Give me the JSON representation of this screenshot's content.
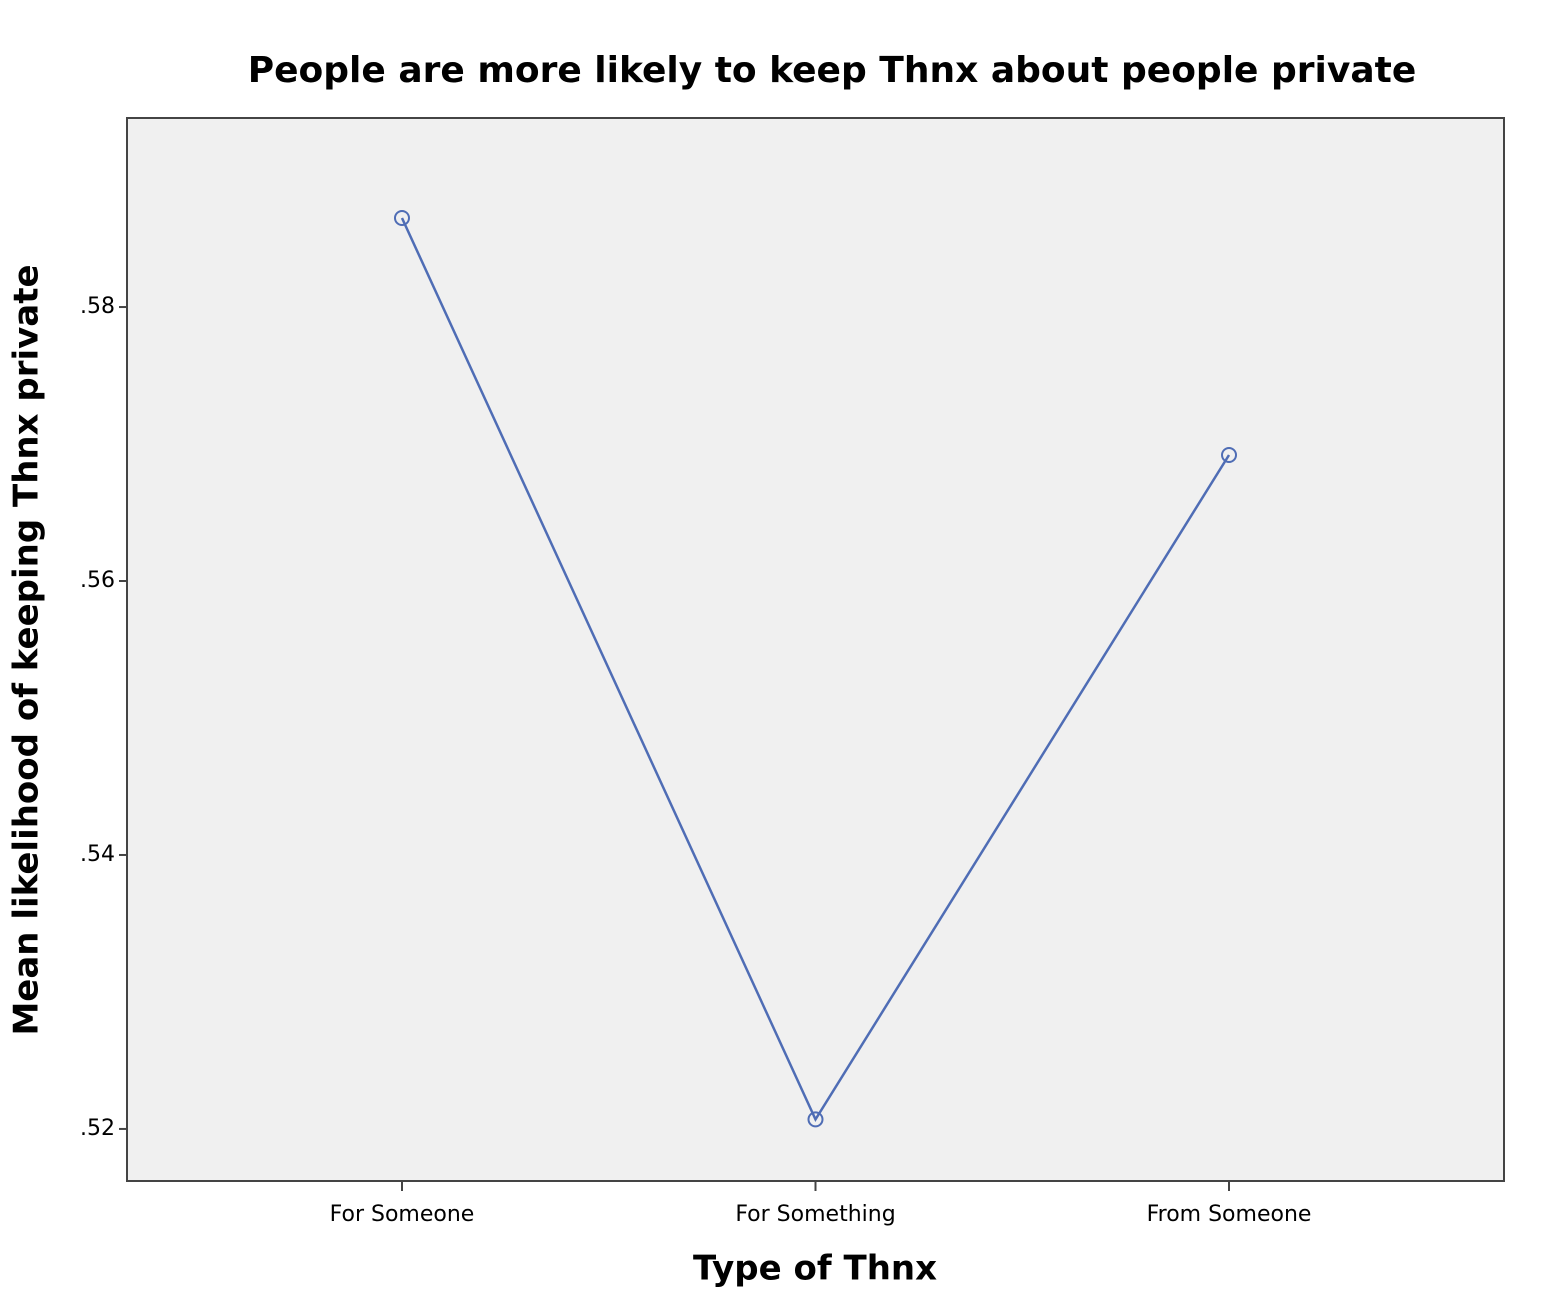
{
  "chart_data": {
    "type": "line",
    "title": "People are more likely to keep Thnx about people private",
    "x_label": "Type of Thnx",
    "y_label": "Mean likelihood of keeping Thnx private",
    "categories": [
      "For Someone",
      "For Something",
      "From Someone"
    ],
    "values": [
      0.5865,
      0.5207,
      0.5692
    ],
    "color": "#4f6db5",
    "marker": "circle",
    "ylim": [
      0.5162,
      0.5938
    ],
    "yticks": [
      {
        "value": 0.52,
        "label": ".52"
      },
      {
        "value": 0.54,
        "label": ".54"
      },
      {
        "value": 0.56,
        "label": ".56"
      },
      {
        "value": 0.58,
        "label": ".58"
      }
    ],
    "grid": false
  }
}
